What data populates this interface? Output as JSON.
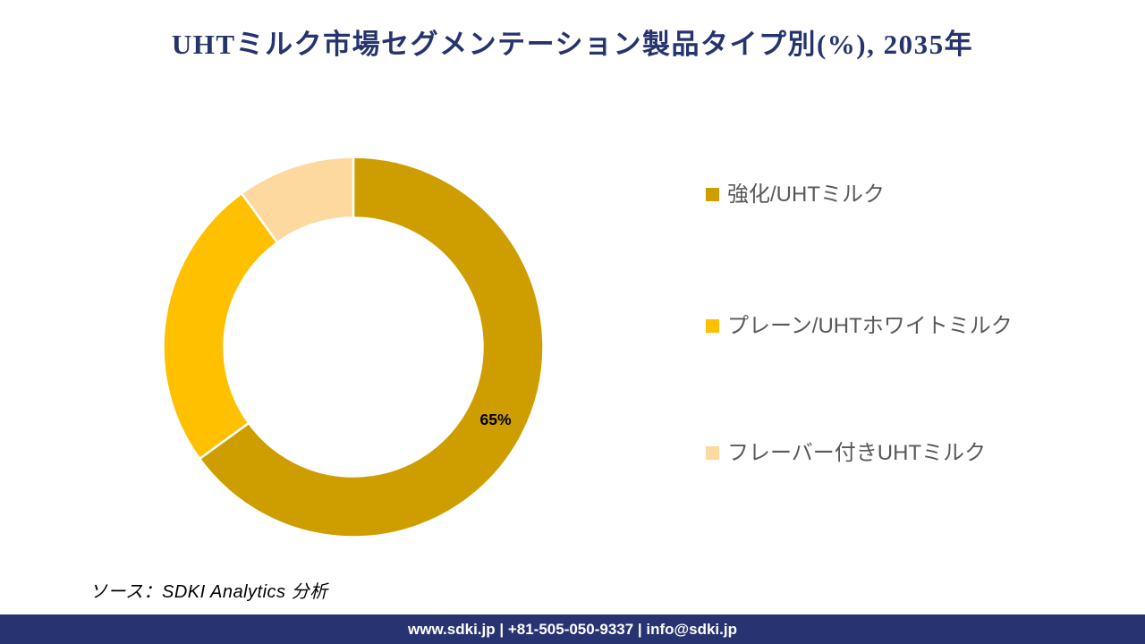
{
  "title": "UHTミルク市場セグメンテーション製品タイプ別(%), 2035年",
  "chart_data": {
    "type": "pie",
    "donut": true,
    "hole_ratio": 0.68,
    "title": "UHTミルク市場セグメンテーション製品タイプ別(%), 2035年",
    "categories": [
      "強化/UHTミルク",
      "プレーン/UHTホワイトミルク",
      "フレーバー付きUHTミルク"
    ],
    "values": [
      65,
      25,
      10
    ],
    "unit": "%",
    "colors": [
      "#CE9E00",
      "#FFC000",
      "#FDD89F"
    ],
    "data_labels": [
      "65%",
      "",
      ""
    ],
    "data_label_color": "#000000",
    "start_angle_deg": 0,
    "direction": "clockwise",
    "legend_position": "right",
    "separator_color": "#FFFFFF"
  },
  "source": {
    "text": "ソース：SDKI Analytics  分析"
  },
  "footer": {
    "text": "www.sdki.jp | +81-505-050-9337 | info@sdki.jp",
    "bar_color": "#283371"
  },
  "style": {
    "title_color": "#26346E",
    "legend_text_color": "#595959"
  }
}
